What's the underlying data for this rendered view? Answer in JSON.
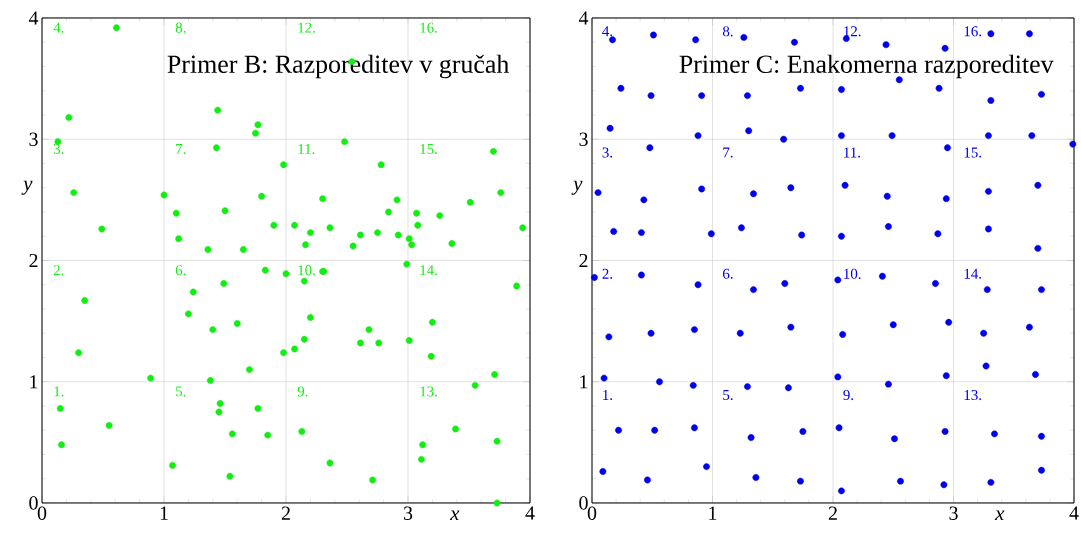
{
  "chart_data": [
    {
      "type": "scatter",
      "title": "Primer B: Razporeditev v gručah",
      "xlabel": "x",
      "ylabel": "y",
      "color": "#11ee11",
      "marker": "circle",
      "grid": true,
      "xlim": [
        0,
        4
      ],
      "ylim": [
        0,
        4
      ],
      "xticks": [
        0,
        1,
        2,
        3,
        4
      ],
      "yticks": [
        0,
        1,
        2,
        3,
        4
      ],
      "x": [
        0.61,
        2.54,
        0.22,
        1.44,
        1.77,
        1.75,
        0.13,
        2.48,
        1.43,
        1.98,
        2.78,
        3.7,
        0.26,
        1.0,
        1.8,
        3.76,
        2.3,
        2.91,
        3.51,
        1.1,
        1.5,
        2.84,
        3.07,
        3.26,
        0.49,
        1.9,
        2.07,
        2.36,
        3.94,
        3.08,
        1.12,
        2.2,
        2.61,
        2.75,
        2.92,
        3.01,
        3.03,
        2.55,
        2.16,
        3.36,
        1.36,
        1.65,
        2.99,
        3.89,
        2.0,
        2.15,
        2.3,
        2.31,
        1.83,
        0.35,
        1.24,
        1.49,
        1.2,
        1.6,
        1.4,
        2.2,
        2.15,
        2.07,
        1.98,
        2.61,
        2.68,
        2.76,
        3.01,
        3.2,
        3.19,
        0.3,
        0.89,
        1.38,
        1.7,
        3.71,
        3.55,
        0.15,
        1.46,
        1.45,
        1.77,
        0.55,
        1.56,
        1.85,
        2.13,
        3.39,
        3.73,
        0.16,
        3.12,
        3.11,
        2.36,
        1.07,
        1.54,
        2.71,
        3.73
      ],
      "values": [
        3.92,
        3.64,
        3.18,
        3.24,
        3.12,
        3.05,
        2.98,
        2.98,
        2.93,
        2.79,
        2.79,
        2.9,
        2.56,
        2.54,
        2.53,
        2.56,
        2.51,
        2.5,
        2.48,
        2.39,
        2.41,
        2.4,
        2.39,
        2.37,
        2.26,
        2.29,
        2.29,
        2.27,
        2.27,
        2.29,
        2.18,
        2.23,
        2.21,
        2.23,
        2.21,
        2.18,
        2.13,
        2.12,
        2.13,
        2.14,
        2.09,
        2.09,
        1.97,
        1.79,
        1.89,
        1.83,
        1.91,
        1.91,
        1.92,
        1.67,
        1.74,
        1.81,
        1.56,
        1.48,
        1.43,
        1.53,
        1.35,
        1.27,
        1.24,
        1.32,
        1.43,
        1.32,
        1.34,
        1.49,
        1.21,
        1.24,
        1.03,
        1.01,
        1.1,
        1.06,
        0.97,
        0.78,
        0.82,
        0.75,
        0.78,
        0.64,
        0.57,
        0.56,
        0.59,
        0.61,
        0.51,
        0.48,
        0.48,
        0.36,
        0.33,
        0.31,
        0.22,
        0.19,
        0.0
      ],
      "annotations": [
        "1.",
        "2.",
        "3.",
        "4.",
        "5.",
        "6.",
        "7.",
        "8.",
        "9.",
        "10.",
        "11.",
        "12.",
        "13.",
        "14.",
        "15.",
        "16."
      ]
    },
    {
      "type": "scatter",
      "title": "Primer C: Enakomerna razporeditev",
      "xlabel": "x",
      "ylabel": "y",
      "color": "#0000ee",
      "marker": "circle",
      "grid": true,
      "xlim": [
        0,
        4
      ],
      "ylim": [
        0,
        4
      ],
      "xticks": [
        0,
        1,
        2,
        3,
        4
      ],
      "yticks": [
        0,
        1,
        2,
        3,
        4
      ],
      "x": [
        0.17,
        0.51,
        0.86,
        1.26,
        1.68,
        2.11,
        2.44,
        2.93,
        3.31,
        3.63,
        0.24,
        0.49,
        0.91,
        1.29,
        1.73,
        2.07,
        2.55,
        2.88,
        3.31,
        3.73,
        0.15,
        0.88,
        1.3,
        1.59,
        2.07,
        2.49,
        3.29,
        3.65,
        3.99,
        0.48,
        2.95,
        0.05,
        0.91,
        1.34,
        1.65,
        2.1,
        2.45,
        2.94,
        3.29,
        3.7,
        0.43,
        0.18,
        0.41,
        0.99,
        1.24,
        1.74,
        2.07,
        2.46,
        2.87,
        3.29,
        3.7,
        0.02,
        0.41,
        0.88,
        1.34,
        1.6,
        2.04,
        2.41,
        2.85,
        3.28,
        3.73,
        0.14,
        0.49,
        0.85,
        1.23,
        1.65,
        2.08,
        2.5,
        2.96,
        3.25,
        3.63,
        0.1,
        0.56,
        0.84,
        1.29,
        1.63,
        2.04,
        2.46,
        2.94,
        3.27,
        3.68,
        0.22,
        0.52,
        0.85,
        1.32,
        1.75,
        2.05,
        2.51,
        2.93,
        3.34,
        3.73,
        0.09,
        0.46,
        0.95,
        1.36,
        1.73,
        2.07,
        2.56,
        2.92,
        3.31,
        3.73
      ],
      "values": [
        3.82,
        3.86,
        3.82,
        3.84,
        3.8,
        3.83,
        3.78,
        3.75,
        3.87,
        3.87,
        3.42,
        3.36,
        3.36,
        3.36,
        3.42,
        3.41,
        3.49,
        3.42,
        3.32,
        3.37,
        3.09,
        3.03,
        3.07,
        3.0,
        3.03,
        3.03,
        3.03,
        3.03,
        2.96,
        2.93,
        2.93,
        2.56,
        2.59,
        2.55,
        2.6,
        2.62,
        2.53,
        2.51,
        2.57,
        2.62,
        2.5,
        2.24,
        2.23,
        2.22,
        2.27,
        2.21,
        2.2,
        2.28,
        2.22,
        2.26,
        2.1,
        1.86,
        1.88,
        1.8,
        1.76,
        1.81,
        1.84,
        1.87,
        1.81,
        1.76,
        1.76,
        1.37,
        1.4,
        1.43,
        1.4,
        1.45,
        1.39,
        1.47,
        1.49,
        1.4,
        1.45,
        1.03,
        1.0,
        0.97,
        0.96,
        0.95,
        1.04,
        0.98,
        1.05,
        1.13,
        1.06,
        0.6,
        0.6,
        0.62,
        0.54,
        0.59,
        0.62,
        0.53,
        0.59,
        0.57,
        0.55,
        0.26,
        0.19,
        0.3,
        0.21,
        0.18,
        0.1,
        0.18,
        0.15,
        0.17,
        0.27
      ],
      "annotations": [
        "1.",
        "2.",
        "3.",
        "4.",
        "5.",
        "6.",
        "7.",
        "8.",
        "9.",
        "10.",
        "11.",
        "12.",
        "13.",
        "14.",
        "15.",
        "16."
      ]
    }
  ]
}
